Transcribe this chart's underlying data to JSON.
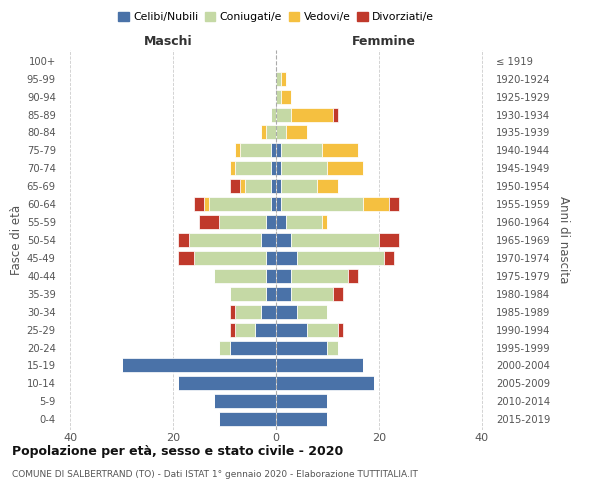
{
  "age_groups": [
    "0-4",
    "5-9",
    "10-14",
    "15-19",
    "20-24",
    "25-29",
    "30-34",
    "35-39",
    "40-44",
    "45-49",
    "50-54",
    "55-59",
    "60-64",
    "65-69",
    "70-74",
    "75-79",
    "80-84",
    "85-89",
    "90-94",
    "95-99",
    "100+"
  ],
  "birth_years": [
    "2015-2019",
    "2010-2014",
    "2005-2009",
    "2000-2004",
    "1995-1999",
    "1990-1994",
    "1985-1989",
    "1980-1984",
    "1975-1979",
    "1970-1974",
    "1965-1969",
    "1960-1964",
    "1955-1959",
    "1950-1954",
    "1945-1949",
    "1940-1944",
    "1935-1939",
    "1930-1934",
    "1925-1929",
    "1920-1924",
    "≤ 1919"
  ],
  "colors": {
    "celibi": "#4a72a8",
    "coniugati": "#c5d9a5",
    "vedovi": "#f5c040",
    "divorziati": "#c0392b"
  },
  "male": {
    "celibi": [
      11,
      12,
      19,
      30,
      9,
      4,
      3,
      2,
      2,
      2,
      3,
      2,
      1,
      1,
      1,
      1,
      0,
      0,
      0,
      0,
      0
    ],
    "coniugati": [
      0,
      0,
      0,
      0,
      2,
      4,
      5,
      7,
      10,
      14,
      14,
      9,
      12,
      5,
      7,
      6,
      2,
      1,
      0,
      0,
      0
    ],
    "vedovi": [
      0,
      0,
      0,
      0,
      0,
      0,
      0,
      0,
      0,
      0,
      0,
      0,
      1,
      1,
      1,
      1,
      1,
      0,
      0,
      0,
      0
    ],
    "divorziati": [
      0,
      0,
      0,
      0,
      0,
      1,
      1,
      0,
      0,
      3,
      2,
      4,
      2,
      2,
      0,
      0,
      0,
      0,
      0,
      0,
      0
    ]
  },
  "female": {
    "celibi": [
      10,
      10,
      19,
      17,
      10,
      6,
      4,
      3,
      3,
      4,
      3,
      2,
      1,
      1,
      1,
      1,
      0,
      0,
      0,
      0,
      0
    ],
    "coniugati": [
      0,
      0,
      0,
      0,
      2,
      6,
      6,
      8,
      11,
      17,
      17,
      7,
      16,
      7,
      9,
      8,
      2,
      3,
      1,
      1,
      0
    ],
    "vedovi": [
      0,
      0,
      0,
      0,
      0,
      0,
      0,
      0,
      0,
      0,
      0,
      1,
      5,
      4,
      7,
      7,
      4,
      8,
      2,
      1,
      0
    ],
    "divorziati": [
      0,
      0,
      0,
      0,
      0,
      1,
      0,
      2,
      2,
      2,
      4,
      0,
      2,
      0,
      0,
      0,
      0,
      1,
      0,
      0,
      0
    ]
  },
  "xlim": 42,
  "title": "Popolazione per età, sesso e stato civile - 2020",
  "subtitle": "COMUNE DI SALBERTRAND (TO) - Dati ISTAT 1° gennaio 2020 - Elaborazione TUTTITALIA.IT",
  "ylabel_left": "Fasce di età",
  "ylabel_right": "Anni di nascita",
  "xlabel_left": "Maschi",
  "xlabel_right": "Femmine"
}
